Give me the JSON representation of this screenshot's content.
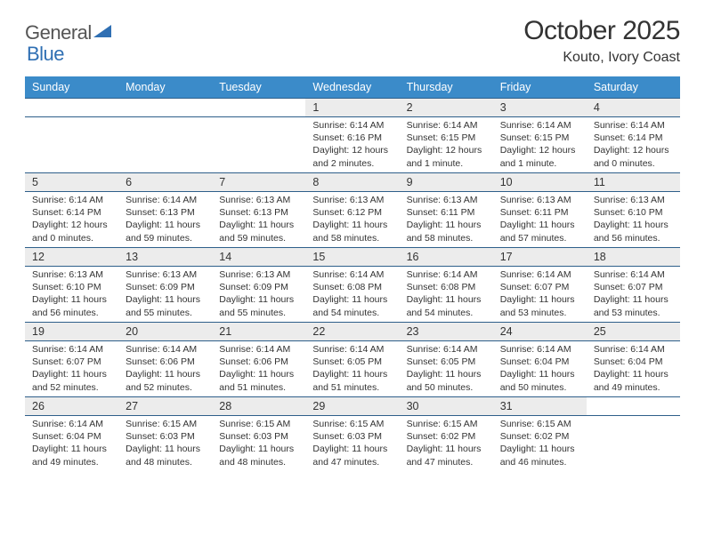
{
  "logo": {
    "text1": "General",
    "text2": "Blue"
  },
  "title": "October 2025",
  "location": "Kouto, Ivory Coast",
  "colors": {
    "header_bg": "#3b8bc9",
    "header_text": "#ffffff",
    "daynum_bg": "#ececec",
    "row_border": "#2e5f8a",
    "logo_gray": "#555555",
    "logo_blue": "#2f6fb3"
  },
  "weekdays": [
    "Sunday",
    "Monday",
    "Tuesday",
    "Wednesday",
    "Thursday",
    "Friday",
    "Saturday"
  ],
  "weeks": [
    [
      null,
      null,
      null,
      {
        "n": "1",
        "sr": "6:14 AM",
        "ss": "6:16 PM",
        "dl": "12 hours and 2 minutes."
      },
      {
        "n": "2",
        "sr": "6:14 AM",
        "ss": "6:15 PM",
        "dl": "12 hours and 1 minute."
      },
      {
        "n": "3",
        "sr": "6:14 AM",
        "ss": "6:15 PM",
        "dl": "12 hours and 1 minute."
      },
      {
        "n": "4",
        "sr": "6:14 AM",
        "ss": "6:14 PM",
        "dl": "12 hours and 0 minutes."
      }
    ],
    [
      {
        "n": "5",
        "sr": "6:14 AM",
        "ss": "6:14 PM",
        "dl": "12 hours and 0 minutes."
      },
      {
        "n": "6",
        "sr": "6:14 AM",
        "ss": "6:13 PM",
        "dl": "11 hours and 59 minutes."
      },
      {
        "n": "7",
        "sr": "6:13 AM",
        "ss": "6:13 PM",
        "dl": "11 hours and 59 minutes."
      },
      {
        "n": "8",
        "sr": "6:13 AM",
        "ss": "6:12 PM",
        "dl": "11 hours and 58 minutes."
      },
      {
        "n": "9",
        "sr": "6:13 AM",
        "ss": "6:11 PM",
        "dl": "11 hours and 58 minutes."
      },
      {
        "n": "10",
        "sr": "6:13 AM",
        "ss": "6:11 PM",
        "dl": "11 hours and 57 minutes."
      },
      {
        "n": "11",
        "sr": "6:13 AM",
        "ss": "6:10 PM",
        "dl": "11 hours and 56 minutes."
      }
    ],
    [
      {
        "n": "12",
        "sr": "6:13 AM",
        "ss": "6:10 PM",
        "dl": "11 hours and 56 minutes."
      },
      {
        "n": "13",
        "sr": "6:13 AM",
        "ss": "6:09 PM",
        "dl": "11 hours and 55 minutes."
      },
      {
        "n": "14",
        "sr": "6:13 AM",
        "ss": "6:09 PM",
        "dl": "11 hours and 55 minutes."
      },
      {
        "n": "15",
        "sr": "6:14 AM",
        "ss": "6:08 PM",
        "dl": "11 hours and 54 minutes."
      },
      {
        "n": "16",
        "sr": "6:14 AM",
        "ss": "6:08 PM",
        "dl": "11 hours and 54 minutes."
      },
      {
        "n": "17",
        "sr": "6:14 AM",
        "ss": "6:07 PM",
        "dl": "11 hours and 53 minutes."
      },
      {
        "n": "18",
        "sr": "6:14 AM",
        "ss": "6:07 PM",
        "dl": "11 hours and 53 minutes."
      }
    ],
    [
      {
        "n": "19",
        "sr": "6:14 AM",
        "ss": "6:07 PM",
        "dl": "11 hours and 52 minutes."
      },
      {
        "n": "20",
        "sr": "6:14 AM",
        "ss": "6:06 PM",
        "dl": "11 hours and 52 minutes."
      },
      {
        "n": "21",
        "sr": "6:14 AM",
        "ss": "6:06 PM",
        "dl": "11 hours and 51 minutes."
      },
      {
        "n": "22",
        "sr": "6:14 AM",
        "ss": "6:05 PM",
        "dl": "11 hours and 51 minutes."
      },
      {
        "n": "23",
        "sr": "6:14 AM",
        "ss": "6:05 PM",
        "dl": "11 hours and 50 minutes."
      },
      {
        "n": "24",
        "sr": "6:14 AM",
        "ss": "6:04 PM",
        "dl": "11 hours and 50 minutes."
      },
      {
        "n": "25",
        "sr": "6:14 AM",
        "ss": "6:04 PM",
        "dl": "11 hours and 49 minutes."
      }
    ],
    [
      {
        "n": "26",
        "sr": "6:14 AM",
        "ss": "6:04 PM",
        "dl": "11 hours and 49 minutes."
      },
      {
        "n": "27",
        "sr": "6:15 AM",
        "ss": "6:03 PM",
        "dl": "11 hours and 48 minutes."
      },
      {
        "n": "28",
        "sr": "6:15 AM",
        "ss": "6:03 PM",
        "dl": "11 hours and 48 minutes."
      },
      {
        "n": "29",
        "sr": "6:15 AM",
        "ss": "6:03 PM",
        "dl": "11 hours and 47 minutes."
      },
      {
        "n": "30",
        "sr": "6:15 AM",
        "ss": "6:02 PM",
        "dl": "11 hours and 47 minutes."
      },
      {
        "n": "31",
        "sr": "6:15 AM",
        "ss": "6:02 PM",
        "dl": "11 hours and 46 minutes."
      },
      null
    ]
  ],
  "labels": {
    "sunrise": "Sunrise:",
    "sunset": "Sunset:",
    "daylight": "Daylight:"
  }
}
